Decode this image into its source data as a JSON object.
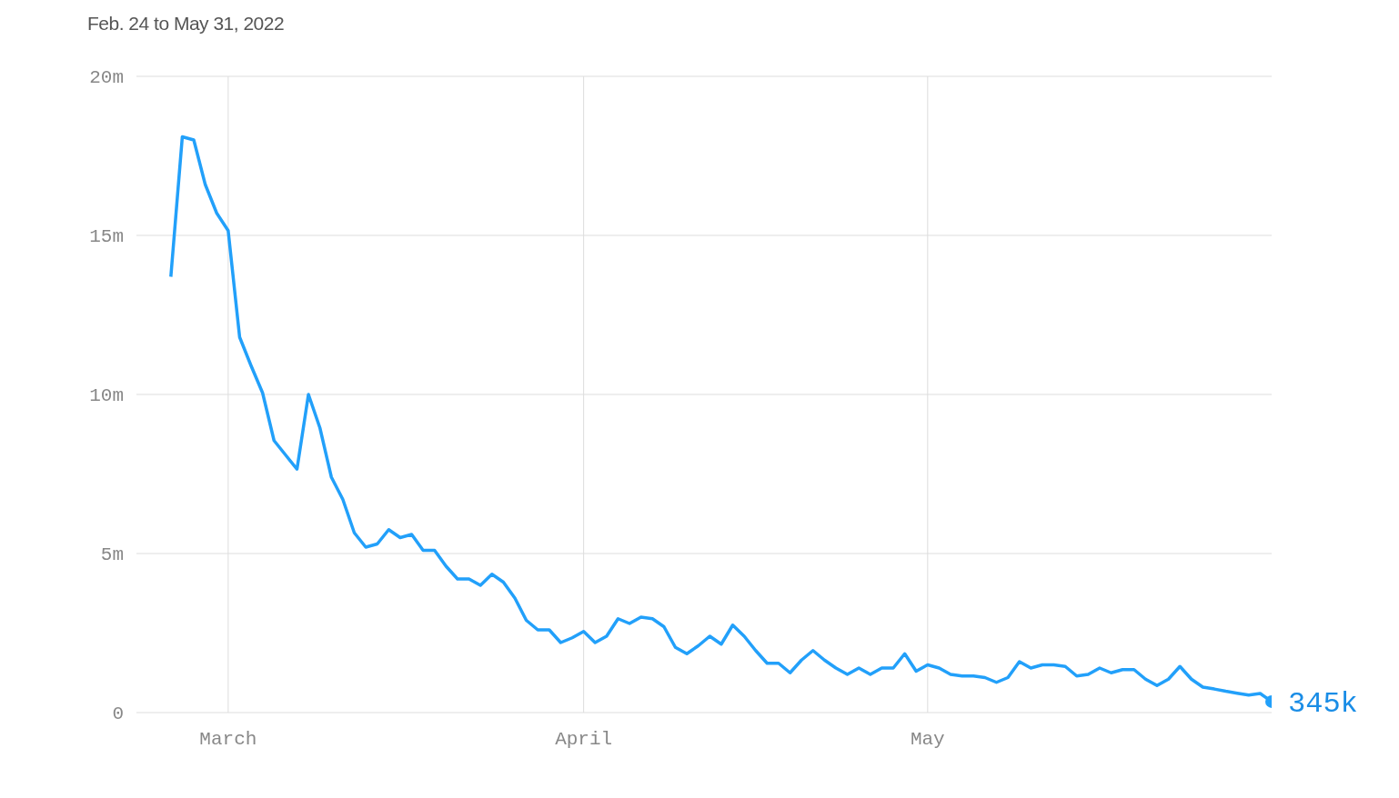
{
  "chart_data": {
    "type": "line",
    "title": "Feb. 24 to May 31, 2022",
    "x": [
      "2022-02-24",
      "2022-02-25",
      "2022-02-26",
      "2022-02-27",
      "2022-02-28",
      "2022-03-01",
      "2022-03-02",
      "2022-03-03",
      "2022-03-04",
      "2022-03-05",
      "2022-03-06",
      "2022-03-07",
      "2022-03-08",
      "2022-03-09",
      "2022-03-10",
      "2022-03-11",
      "2022-03-12",
      "2022-03-13",
      "2022-03-14",
      "2022-03-15",
      "2022-03-16",
      "2022-03-17",
      "2022-03-18",
      "2022-03-19",
      "2022-03-20",
      "2022-03-21",
      "2022-03-22",
      "2022-03-23",
      "2022-03-24",
      "2022-03-25",
      "2022-03-26",
      "2022-03-27",
      "2022-03-28",
      "2022-03-29",
      "2022-03-30",
      "2022-03-31",
      "2022-04-01",
      "2022-04-02",
      "2022-04-03",
      "2022-04-04",
      "2022-04-05",
      "2022-04-06",
      "2022-04-07",
      "2022-04-08",
      "2022-04-09",
      "2022-04-10",
      "2022-04-11",
      "2022-04-12",
      "2022-04-13",
      "2022-04-14",
      "2022-04-15",
      "2022-04-16",
      "2022-04-17",
      "2022-04-18",
      "2022-04-19",
      "2022-04-20",
      "2022-04-21",
      "2022-04-22",
      "2022-04-23",
      "2022-04-24",
      "2022-04-25",
      "2022-04-26",
      "2022-04-27",
      "2022-04-28",
      "2022-04-29",
      "2022-04-30",
      "2022-05-01",
      "2022-05-02",
      "2022-05-03",
      "2022-05-04",
      "2022-05-05",
      "2022-05-06",
      "2022-05-07",
      "2022-05-08",
      "2022-05-09",
      "2022-05-10",
      "2022-05-11",
      "2022-05-12",
      "2022-05-13",
      "2022-05-14",
      "2022-05-15",
      "2022-05-16",
      "2022-05-17",
      "2022-05-18",
      "2022-05-19",
      "2022-05-20",
      "2022-05-21",
      "2022-05-22",
      "2022-05-23",
      "2022-05-24",
      "2022-05-25",
      "2022-05-26",
      "2022-05-27",
      "2022-05-28",
      "2022-05-29",
      "2022-05-30",
      "2022-05-31"
    ],
    "series": [
      {
        "color": "#22a0fa",
        "values": [
          13700000,
          18100000,
          18000000,
          16600000,
          15700000,
          15150000,
          11800000,
          10900000,
          10050000,
          8550000,
          8100000,
          7650000,
          10000000,
          8950000,
          7400000,
          6700000,
          5650000,
          5200000,
          5300000,
          5750000,
          5500000,
          5600000,
          5100000,
          5100000,
          4600000,
          4200000,
          4200000,
          4000000,
          4350000,
          4100000,
          3600000,
          2900000,
          2600000,
          2600000,
          2200000,
          2350000,
          2550000,
          2200000,
          2400000,
          2950000,
          2800000,
          3000000,
          2950000,
          2700000,
          2050000,
          1850000,
          2100000,
          2400000,
          2150000,
          2750000,
          2400000,
          1950000,
          1550000,
          1550000,
          1250000,
          1650000,
          1950000,
          1650000,
          1400000,
          1200000,
          1400000,
          1200000,
          1400000,
          1400000,
          1850000,
          1300000,
          1500000,
          1400000,
          1200000,
          1150000,
          1150000,
          1100000,
          950000,
          1100000,
          1600000,
          1400000,
          1500000,
          1500000,
          1450000,
          1150000,
          1200000,
          1400000,
          1250000,
          1350000,
          1350000,
          1050000,
          850000,
          1050000,
          1450000,
          1050000,
          800000,
          740000,
          670000,
          610000,
          550000,
          600000,
          345000
        ],
        "value_labels": [
          null,
          null,
          null,
          null,
          null,
          null,
          null,
          null,
          null,
          null,
          null,
          null,
          null,
          null,
          null,
          null,
          null,
          null,
          null,
          null,
          null,
          null,
          null,
          null,
          null,
          null,
          null,
          null,
          null,
          null,
          null,
          null,
          null,
          null,
          null,
          null,
          null,
          null,
          null,
          null,
          null,
          null,
          null,
          null,
          null,
          null,
          null,
          null,
          null,
          null,
          null,
          null,
          null,
          null,
          null,
          null,
          null,
          null,
          null,
          null,
          null,
          null,
          null,
          null,
          null,
          null,
          null,
          null,
          null,
          null,
          null,
          null,
          null,
          null,
          null,
          null,
          null,
          null,
          null,
          null,
          null,
          null,
          null,
          null,
          null,
          null,
          null,
          null,
          null,
          null,
          null,
          null,
          null,
          null,
          null,
          null,
          "345k"
        ]
      }
    ],
    "xlim": [
      "2022-02-21",
      "2022-05-31"
    ],
    "xticks": [
      {
        "value": "2022-03-01",
        "label": "March"
      },
      {
        "value": "2022-04-01",
        "label": "April"
      },
      {
        "value": "2022-05-01",
        "label": "May"
      }
    ],
    "ylim": [
      0,
      20000000
    ],
    "yticks": [
      0,
      {
        "value": 5000000,
        "label": "5m"
      },
      {
        "value": 10000000,
        "label": "10m"
      },
      {
        "value": 15000000,
        "label": "15m"
      },
      {
        "value": 20000000,
        "label": "20m"
      }
    ],
    "grid": true,
    "legend": false,
    "marker": "none",
    "line_style": "solid"
  }
}
